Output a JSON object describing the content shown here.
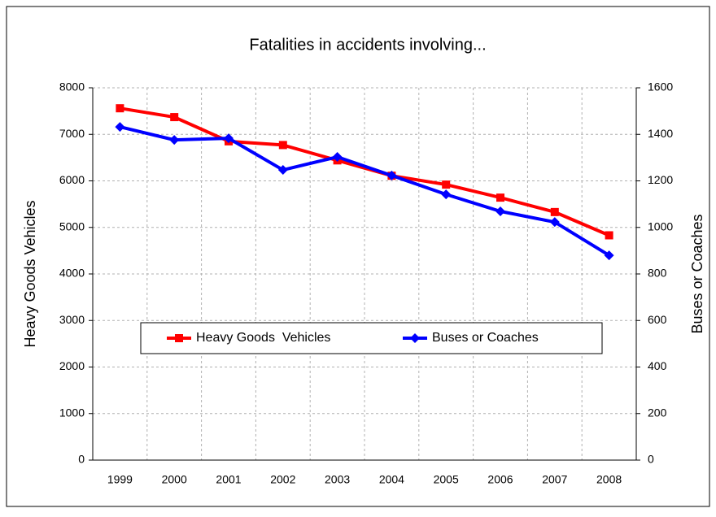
{
  "chart_data": {
    "type": "line",
    "title": "Fatalities in accidents involving...",
    "categories": [
      "1999",
      "2000",
      "2001",
      "2002",
      "2003",
      "2004",
      "2005",
      "2006",
      "2007",
      "2008"
    ],
    "series": [
      {
        "name": "Heavy Goods  Vehicles",
        "color": "#ff0000",
        "marker": "square",
        "values": [
          7560,
          7370,
          6850,
          6770,
          6440,
          6110,
          5920,
          5640,
          5330,
          4830
        ]
      },
      {
        "name": "Buses or Coaches",
        "color": "#0000ff",
        "marker": "diamond",
        "axis": "y2",
        "values": [
          1432,
          1376,
          1383,
          1247,
          1303,
          1223,
          1142,
          1069,
          1023,
          880
        ]
      }
    ],
    "ylabel": "Heavy Goods Vehicles",
    "y2label": "Buses or Coaches",
    "ylim": [
      0,
      8000
    ],
    "yticks": [
      0,
      1000,
      2000,
      3000,
      4000,
      5000,
      6000,
      7000,
      8000
    ],
    "y2lim": [
      0,
      1600
    ],
    "y2ticks": [
      0,
      200,
      400,
      600,
      800,
      1000,
      1200,
      1400,
      1600
    ],
    "grid": true,
    "legend": "center"
  }
}
